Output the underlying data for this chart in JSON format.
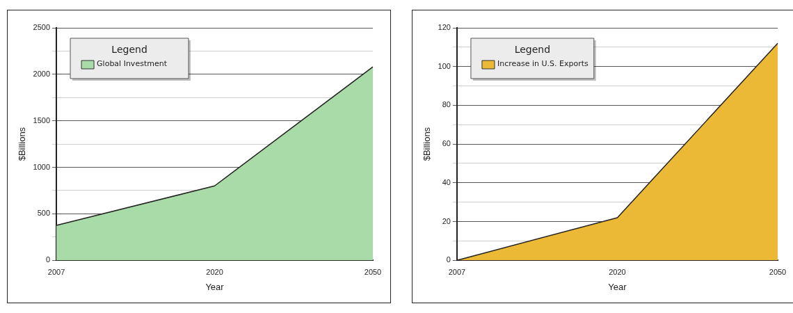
{
  "chart_data": [
    {
      "type": "area",
      "categories": [
        "2007",
        "2020",
        "2050"
      ],
      "xlabel": "Year",
      "ylabel": "$Billions",
      "legend_title": "Legend",
      "legend": "top left",
      "grid": "y",
      "ylim": [
        0,
        2500
      ],
      "yticks": [
        0,
        {
          "value": 250,
          "label": null
        },
        500,
        {
          "value": 750,
          "label": null
        },
        1000,
        {
          "value": 1250,
          "label": null
        },
        1500,
        {
          "value": 1750,
          "label": null
        },
        2000,
        {
          "value": 2250,
          "label": null
        },
        2500
      ],
      "series": [
        {
          "name": "Global Investment",
          "color": "#a8dba8",
          "values": [
            375,
            800,
            2080
          ]
        }
      ]
    },
    {
      "type": "area",
      "categories": [
        "2007",
        "2020",
        "2050"
      ],
      "xlabel": "Year",
      "ylabel": "$Billions",
      "legend_title": "Legend",
      "legend": "top left",
      "grid": "y",
      "ylim": [
        0,
        120
      ],
      "yticks": [
        0,
        {
          "value": 10,
          "label": null
        },
        20,
        {
          "value": 30,
          "label": null
        },
        40,
        {
          "value": 50,
          "label": null
        },
        60,
        {
          "value": 70,
          "label": null
        },
        80,
        {
          "value": 90,
          "label": null
        },
        100,
        {
          "value": 110,
          "label": null
        },
        120
      ],
      "series": [
        {
          "name": "Increase in U.S. Exports",
          "color": "#ebb936",
          "values": [
            0,
            22,
            112
          ]
        }
      ]
    }
  ]
}
